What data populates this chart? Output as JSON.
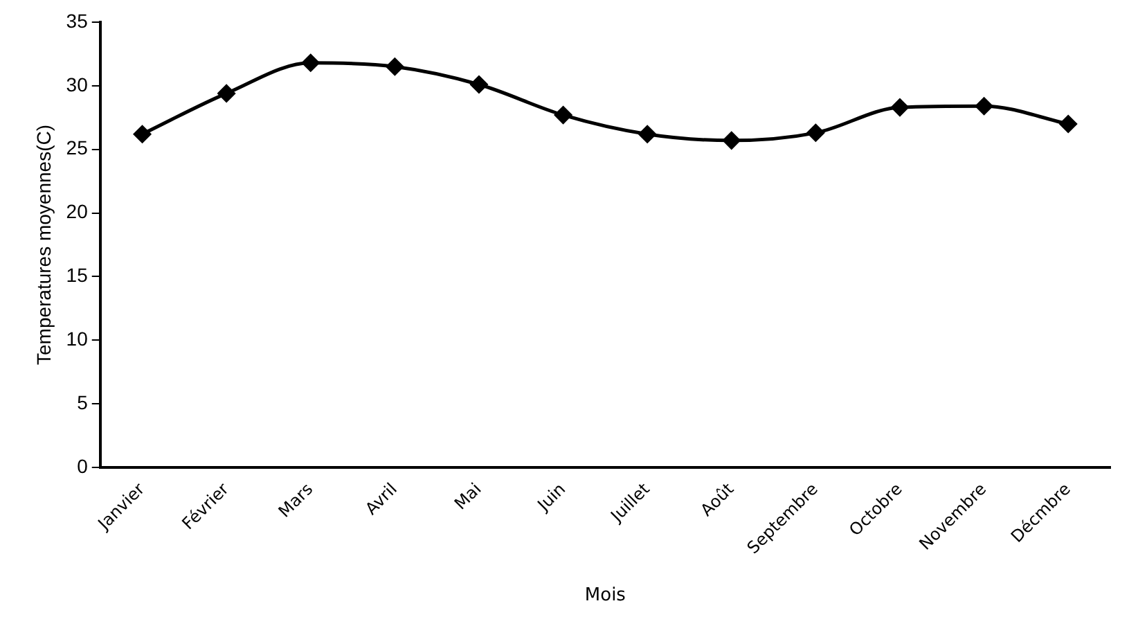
{
  "chart_data": {
    "type": "line",
    "xlabel": "Mois",
    "ylabel": "Temperatures moyennes(C)",
    "categories": [
      "Janvier",
      "Février",
      "Mars",
      "Avril",
      "Mai",
      "Juin",
      "Juillet",
      "Août",
      "Septembre",
      "Octobre",
      "Novembre",
      "Décmbre"
    ],
    "series": [
      {
        "color": "#000000",
        "values": [
          26.2,
          29.4,
          31.8,
          31.5,
          30.1,
          27.7,
          26.2,
          25.7,
          26.3,
          28.3,
          28.4,
          27.0
        ]
      }
    ],
    "ylim": [
      0,
      35
    ],
    "yticks": [
      0,
      5,
      10,
      15,
      20,
      25,
      30,
      35
    ],
    "grid": false,
    "legend": false,
    "marker": "diamond",
    "line_style": "solid"
  }
}
